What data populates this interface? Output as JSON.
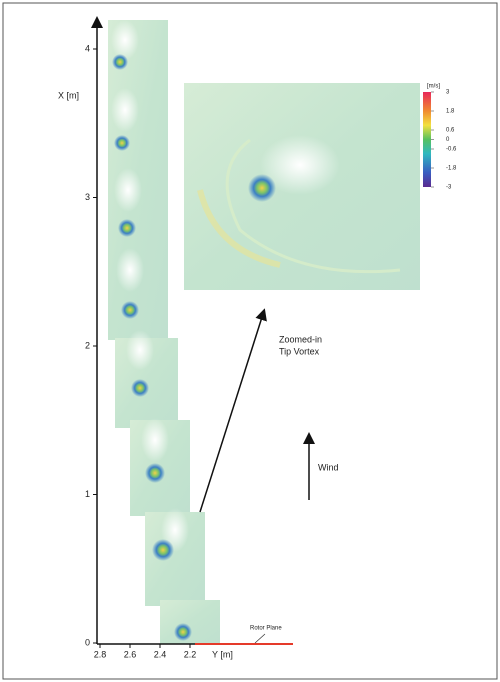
{
  "figure": {
    "x_axis_label": "X [m]",
    "x_ticks": [
      0,
      1,
      2,
      3,
      4
    ],
    "y_axis_label": "Y [m]",
    "y_ticks": [
      2.8,
      2.6,
      2.4,
      2.2
    ],
    "colorbar_unit": "[m/s]",
    "colorbar_ticks": [
      3,
      1.8,
      0.6,
      0,
      -0.6,
      -1.8,
      -3
    ],
    "annotation": [
      "Zoomed-in",
      "Tip Vortex"
    ],
    "wind_label": "Wind",
    "rotor_label": "Rotor Plane"
  }
}
